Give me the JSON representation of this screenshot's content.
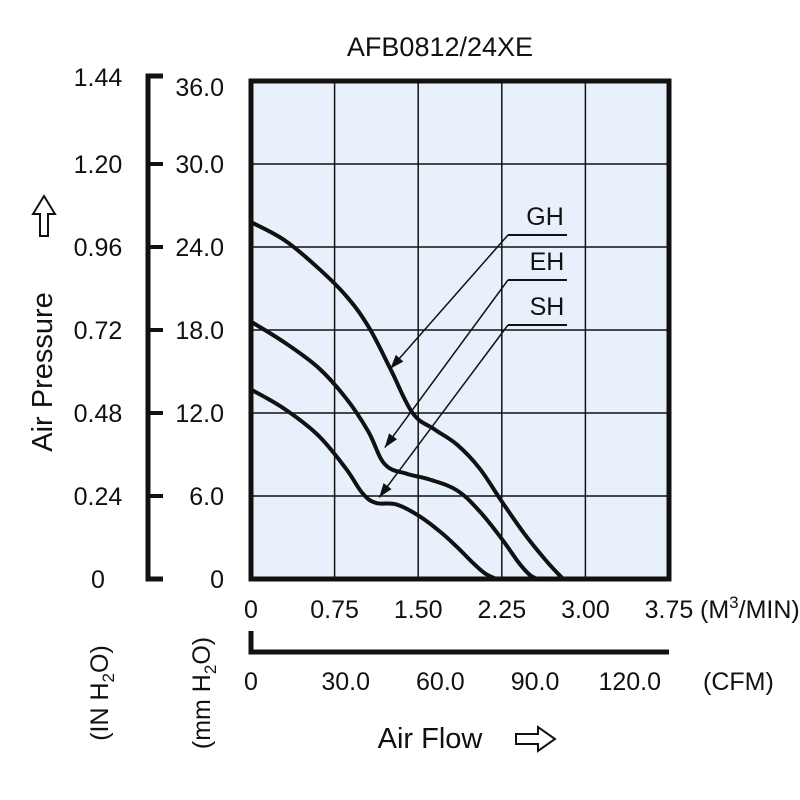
{
  "chart_data": {
    "type": "line",
    "title": "AFB0812/24XE",
    "ylabel": "Air Pressure",
    "xlabel": "Air Flow",
    "y_axes": {
      "inH2O": {
        "unit": "(IN H2O)",
        "ticks": [
          "0",
          "0.24",
          "0.48",
          "0.72",
          "0.96",
          "1.20",
          "1.44"
        ]
      },
      "mmH2O": {
        "unit": "(mm H2O)",
        "ticks": [
          "0",
          "6.0",
          "12.0",
          "18.0",
          "24.0",
          "30.0",
          "36.0"
        ]
      }
    },
    "x_axes": {
      "m3min": {
        "unit": "(M3/MIN)",
        "ticks": [
          "0",
          "0.75",
          "1.50",
          "2.25",
          "3.00",
          "3.75"
        ]
      },
      "cfm": {
        "unit": "(CFM)",
        "ticks": [
          "0",
          "30.0",
          "60.0",
          "90.0",
          "120.0"
        ]
      }
    },
    "xlim": [
      0,
      3.75
    ],
    "ylim": [
      0,
      36
    ],
    "grid": true,
    "background": "#e8f1fb",
    "series": [
      {
        "name": "GH",
        "x": [
          0,
          0.3,
          0.6,
          0.85,
          1.05,
          1.25,
          1.45,
          1.65,
          1.85,
          2.05,
          2.25,
          2.45,
          2.65,
          2.8
        ],
        "y": [
          25.8,
          24.5,
          22.5,
          20.5,
          18.3,
          15.2,
          12.0,
          10.8,
          9.7,
          8.0,
          5.6,
          3.3,
          1.3,
          0
        ]
      },
      {
        "name": "EH",
        "x": [
          0,
          0.3,
          0.6,
          0.85,
          1.05,
          1.2,
          1.4,
          1.6,
          1.85,
          2.05,
          2.25,
          2.4,
          2.5,
          2.57
        ],
        "y": [
          18.6,
          17.1,
          15.3,
          13.1,
          10.7,
          8.3,
          7.6,
          7.2,
          6.4,
          4.9,
          2.9,
          1.2,
          0.3,
          0
        ]
      },
      {
        "name": "SH",
        "x": [
          0,
          0.3,
          0.6,
          0.85,
          1.0,
          1.12,
          1.3,
          1.5,
          1.7,
          1.85,
          2.0,
          2.1,
          2.2
        ],
        "y": [
          13.7,
          12.3,
          10.4,
          8.0,
          6.2,
          5.5,
          5.4,
          4.6,
          3.4,
          2.3,
          1.1,
          0.4,
          0
        ]
      }
    ],
    "legend": [
      {
        "label": "GH",
        "points_to": {
          "x": 1.25,
          "y": 15.2
        }
      },
      {
        "label": "EH",
        "points_to": {
          "x": 1.2,
          "y": 9.5
        }
      },
      {
        "label": "SH",
        "points_to": {
          "x": 1.15,
          "y": 5.9
        }
      }
    ],
    "colors": {
      "line": "#111111",
      "grid": "#111111",
      "plot_bg": "#e8f1fb"
    }
  }
}
